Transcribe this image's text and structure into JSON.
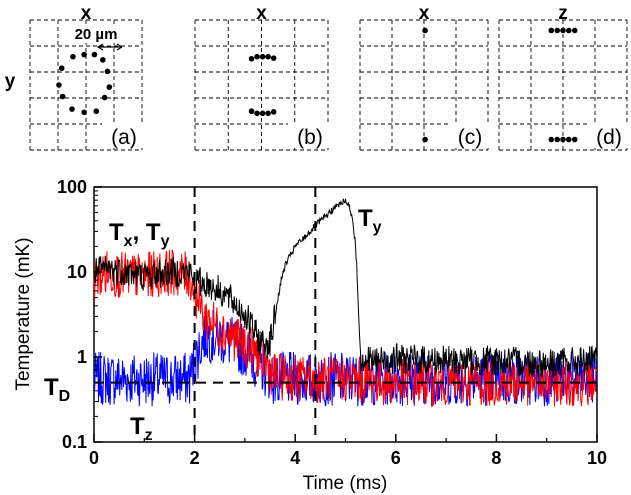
{
  "insets": [
    {
      "label": "(a)",
      "xlabel": "x",
      "ylabel": "y",
      "scale_label": "20 µm",
      "points": [
        [
          -0.7,
          1.35
        ],
        [
          -0.1,
          1.45
        ],
        [
          0.45,
          1.45
        ],
        [
          0.9,
          1.2
        ],
        [
          -1.3,
          0.8
        ],
        [
          1.15,
          0.65
        ],
        [
          -1.45,
          0.0
        ],
        [
          1.25,
          -0.1
        ],
        [
          -1.25,
          -0.55
        ],
        [
          1.0,
          -0.6
        ],
        [
          -0.75,
          -1.15
        ],
        [
          -0.1,
          -1.3
        ],
        [
          0.55,
          -1.25
        ]
      ]
    },
    {
      "label": "(b)",
      "xlabel": "x",
      "ylabel": "",
      "points": [
        [
          -0.45,
          1.25
        ],
        [
          -0.2,
          1.35
        ],
        [
          0.05,
          1.35
        ],
        [
          0.3,
          1.35
        ],
        [
          0.55,
          1.28
        ],
        [
          -0.45,
          -1.25
        ],
        [
          -0.2,
          -1.35
        ],
        [
          0.05,
          -1.35
        ],
        [
          0.3,
          -1.35
        ],
        [
          0.55,
          -1.28
        ]
      ]
    },
    {
      "label": "(c)",
      "xlabel": "x",
      "ylabel": "",
      "points": [
        [
          0.05,
          2.6
        ],
        [
          0.05,
          -2.6
        ]
      ]
    },
    {
      "label": "(d)",
      "xlabel": "z",
      "ylabel": "",
      "points": [
        [
          -0.55,
          2.6
        ],
        [
          -0.27,
          2.6
        ],
        [
          0.0,
          2.6
        ],
        [
          0.27,
          2.6
        ],
        [
          0.55,
          2.6
        ],
        [
          -0.55,
          -2.6
        ],
        [
          -0.27,
          -2.6
        ],
        [
          0.0,
          -2.6
        ],
        [
          0.27,
          -2.6
        ],
        [
          0.55,
          -2.6
        ]
      ]
    }
  ],
  "chart_data": {
    "type": "line",
    "title": "",
    "xlabel": "Time (ms)",
    "ylabel": "Temperature (mK)",
    "xlim": [
      0,
      10
    ],
    "ylim": [
      0.1,
      100
    ],
    "yscale": "log",
    "xticks": [
      "0",
      "2",
      "4",
      "6",
      "8",
      "10"
    ],
    "yticks": [
      "0.1",
      "1",
      "10",
      "100"
    ],
    "legend": "none",
    "series": [
      {
        "color": "#000000",
        "x": [
          0,
          0.3,
          0.6,
          1.0,
          1.5,
          1.9,
          2.0,
          2.3,
          2.6,
          3.0,
          3.3,
          3.5,
          3.6,
          3.7,
          3.8,
          4.0,
          4.2,
          4.4,
          4.6,
          4.8,
          5.0,
          5.1,
          5.2,
          5.25,
          5.3,
          5.5,
          6,
          7,
          8,
          9,
          10
        ],
        "y": [
          10,
          11,
          10,
          9,
          10,
          10,
          8,
          7,
          5.5,
          3.2,
          1.5,
          1.5,
          3,
          7,
          12,
          20,
          26,
          35,
          45,
          58,
          70,
          55,
          22,
          6,
          1,
          0.9,
          0.95,
          0.9,
          0.9,
          0.85,
          0.9
        ]
      },
      {
        "color": "#ff0000",
        "x": [
          0,
          0.3,
          0.6,
          1.0,
          1.5,
          1.9,
          2.0,
          2.2,
          2.5,
          3.0,
          3.3,
          3.6,
          4,
          5,
          6,
          7,
          8,
          9,
          10
        ],
        "y": [
          8.5,
          10,
          9,
          9,
          10,
          9,
          6,
          3,
          2.2,
          1.4,
          1,
          0.6,
          0.55,
          0.55,
          0.5,
          0.5,
          0.5,
          0.5,
          0.5
        ]
      },
      {
        "color": "#0000ff",
        "x": [
          0,
          0.5,
          1.0,
          1.5,
          1.9,
          2.0,
          2.2,
          2.5,
          3.0,
          3.3,
          3.6,
          4,
          5,
          6,
          7,
          8,
          9,
          10
        ],
        "y": [
          0.55,
          0.55,
          0.55,
          0.55,
          0.55,
          0.9,
          1.8,
          1.7,
          1.2,
          0.8,
          0.55,
          0.55,
          0.55,
          0.55,
          0.55,
          0.55,
          0.55,
          0.55
        ]
      }
    ],
    "reference_line": {
      "y": 0.5,
      "style": "dashed"
    },
    "vertical_lines": [
      {
        "x": 2.0,
        "style": "dashed"
      },
      {
        "x": 4.4,
        "style": "dashed"
      }
    ],
    "annotations": [
      {
        "text": "Tx, Ty"
      },
      {
        "text": "Ty"
      },
      {
        "text": "TD"
      },
      {
        "text": "Tz"
      }
    ]
  }
}
